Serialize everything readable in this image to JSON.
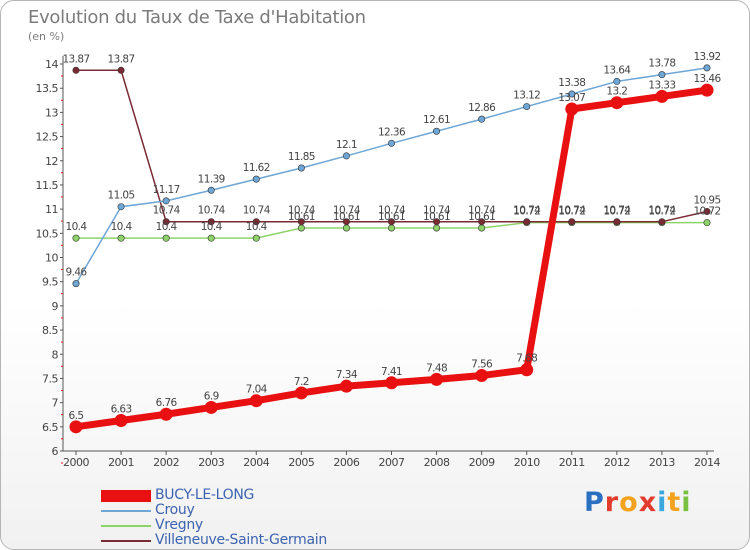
{
  "title": "Evolution du Taux de Taxe d'Habitation",
  "unit": "(en %)",
  "logo": {
    "text": "Proxiti",
    "colors": [
      "#2a6fc0",
      "#e43c2c",
      "#f3a21d",
      "#e43c2c",
      "#3aa7e0",
      "#f3a21d",
      "#7ac142"
    ]
  },
  "chart_data": {
    "type": "line",
    "x": [
      2000,
      2001,
      2002,
      2003,
      2004,
      2005,
      2006,
      2007,
      2008,
      2009,
      2010,
      2011,
      2012,
      2013,
      2014
    ],
    "ylim": [
      6,
      14
    ],
    "yticks": [
      "6",
      "6.5",
      "7",
      "7.5",
      "8",
      "8.5",
      "9",
      "9.5",
      "10",
      "10.5",
      "11",
      "11.5",
      "12",
      "12.5",
      "13",
      "13.5",
      "14"
    ],
    "grid": false,
    "legend_position": "bottom-left",
    "series": [
      {
        "name": "BUCY-LE-LONG",
        "color": "#e81010",
        "values": [
          6.5,
          6.63,
          6.76,
          6.9,
          7.04,
          7.2,
          7.34,
          7.41,
          7.48,
          7.56,
          7.68,
          13.07,
          13.2,
          13.33,
          13.46
        ],
        "labels": [
          "6.5",
          "6.63",
          "6.76",
          "6.9",
          "7.04",
          "7.2",
          "7.34",
          "7.41",
          "7.48",
          "7.56",
          "7.68",
          "13.07",
          "13.2",
          "13.33",
          "13.46"
        ]
      },
      {
        "name": "Crouy",
        "color": "#6ea6d6",
        "values": [
          9.46,
          11.05,
          11.17,
          11.39,
          11.62,
          11.85,
          12.1,
          12.36,
          12.61,
          12.86,
          13.12,
          13.38,
          13.64,
          13.78,
          13.92
        ],
        "labels": [
          "9.46",
          "11.05",
          "11.17",
          "11.39",
          "11.62",
          "11.85",
          "12.1",
          "12.36",
          "12.61",
          "12.86",
          "13.12",
          "13.38",
          "13.64",
          "13.78",
          "13.92"
        ]
      },
      {
        "name": "Vregny",
        "color": "#8ed36a",
        "values": [
          10.4,
          10.4,
          10.4,
          10.4,
          10.4,
          10.61,
          10.61,
          10.61,
          10.61,
          10.61,
          10.72,
          10.72,
          10.72,
          10.72,
          10.72
        ],
        "labels": [
          "10.4",
          "10.4",
          "10.4",
          "10.4",
          "10.4",
          "10.61",
          "10.61",
          "10.61",
          "10.61",
          "10.61",
          "10.72",
          "10.72",
          "10.72",
          "10.72",
          "10.72"
        ]
      },
      {
        "name": "Villeneuve-Saint-Germain",
        "color": "#7a2a32",
        "values": [
          13.87,
          13.87,
          10.74,
          10.74,
          10.74,
          10.74,
          10.74,
          10.74,
          10.74,
          10.74,
          10.74,
          10.74,
          10.74,
          10.74,
          10.95
        ],
        "labels": [
          "13.87",
          "13.87",
          "10.74",
          "10.74",
          "10.74",
          "10.74",
          "10.74",
          "10.74",
          "10.74",
          "10.74",
          "10.74",
          "10.74",
          "10.74",
          "10.74",
          "10.95"
        ]
      }
    ]
  }
}
